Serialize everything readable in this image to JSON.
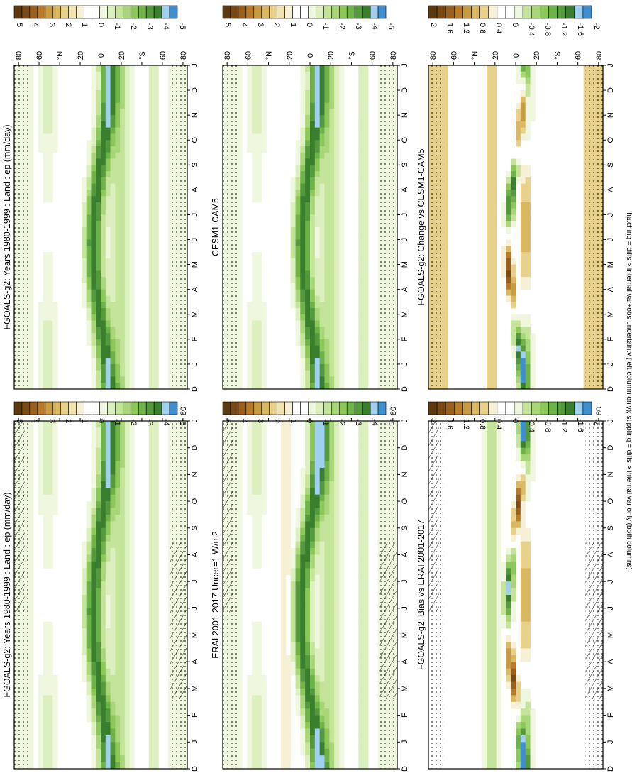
{
  "footnote": "hatching = diffs > internal var+obs uncertainty (left column only); stippling = diffs > internal var only (both columns)",
  "months": [
    "D",
    "J",
    "F",
    "M",
    "A",
    "M",
    "J",
    "J",
    "A",
    "S",
    "O",
    "N",
    "D",
    "J"
  ],
  "lat_ticks": [
    "80",
    "60",
    "°N",
    "20",
    "0",
    "20",
    "°S",
    "60",
    "80"
  ],
  "legend_main": [
    "5",
    "4",
    "3",
    "2",
    "1",
    "0",
    "-1",
    "-2",
    "-3",
    "-4",
    "-5"
  ],
  "legend_diff": [
    "2",
    "1.6",
    "1.2",
    "0.8",
    "0.4",
    "0",
    "-0.4",
    "-0.8",
    "-1.2",
    "-1.6",
    "-2"
  ],
  "colors": {
    "main_scale": [
      "#5c3a0e",
      "#7a4a14",
      "#9a5f1c",
      "#b77c2b",
      "#c89a42",
      "#dab862",
      "#e8d18a",
      "#f1e4b0",
      "#f6f0d6",
      "#ffffff",
      "#ffffff",
      "#f0f7df",
      "#dcefbf",
      "#c4e49a",
      "#a9d678",
      "#8cc75a",
      "#6fb24a",
      "#54993d",
      "#3a7f2e",
      "#9fd0ee",
      "#3f8fd0"
    ],
    "diff_scale": [
      "#5c3a0e",
      "#7a4a14",
      "#9a5f1c",
      "#b77c2b",
      "#c89a42",
      "#dab862",
      "#e8d18a",
      "#f6f0d6",
      "#ffffff",
      "#ffffff",
      "#f0f7df",
      "#c4e49a",
      "#a9d678",
      "#8cc75a",
      "#6fb24a",
      "#54993d",
      "#3a7f2e",
      "#9fd0ee",
      "#3f8fd0"
    ]
  },
  "chart_data": [
    {
      "type": "heatmap",
      "id": "p1",
      "title": "FGOALS-g2: Years 1980-1999 : Land : ep (mm/day)",
      "x": "month",
      "y": "latitude",
      "legend": "main"
    },
    {
      "type": "heatmap",
      "id": "p2",
      "title": "FGOALS-g2: Years 1980-1999 : Land : ep (mm/day)",
      "x": "month",
      "y": "latitude",
      "legend": "main"
    },
    {
      "type": "heatmap",
      "id": "p3",
      "title": "ERAI 2001-2017 Uncer=1 W/m2",
      "x": "month",
      "y": "latitude",
      "legend": "main"
    },
    {
      "type": "heatmap",
      "id": "p4",
      "title": "CESM1-CAM5",
      "x": "month",
      "y": "latitude",
      "legend": "main"
    },
    {
      "type": "heatmap",
      "id": "p5",
      "title": "FGOALS-g2: Bias vs ERAI 2001-2017",
      "x": "month",
      "y": "latitude",
      "legend": "diff"
    },
    {
      "type": "heatmap",
      "id": "p6",
      "title": "FGOALS-g2: Change vs CESM1-CAM5",
      "x": "month",
      "y": "latitude",
      "legend": "diff"
    }
  ]
}
